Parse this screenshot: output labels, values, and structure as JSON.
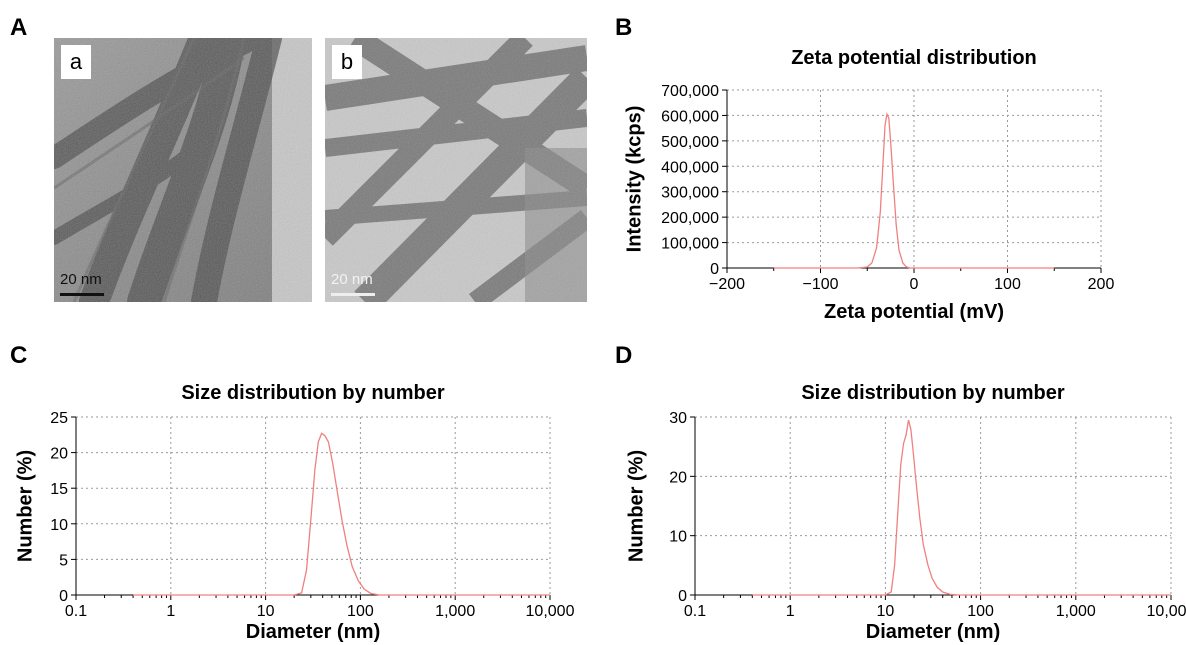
{
  "panel_letters": {
    "A": "A",
    "B": "B",
    "C": "C",
    "D": "D"
  },
  "tem_images": [
    {
      "label": "a",
      "scale_bar": "20 nm"
    },
    {
      "label": "b",
      "scale_bar": "20 nm"
    }
  ],
  "chart_data": [
    {
      "id": "B",
      "type": "line",
      "title": "Zeta potential distribution",
      "xlabel": "Zeta potential (mV)",
      "ylabel": "Intensity (kcps)",
      "xscale": "linear",
      "xlim": [
        -200,
        200
      ],
      "ylim": [
        0,
        700000
      ],
      "xticks": [
        -200,
        -100,
        0,
        100,
        200
      ],
      "xtick_labels": [
        "−200",
        "−100",
        "0",
        "100",
        "200"
      ],
      "yticks": [
        0,
        100000,
        200000,
        300000,
        400000,
        500000,
        600000,
        700000
      ],
      "ytick_labels": [
        "0",
        "100,000",
        "200,000",
        "300,000",
        "400,000",
        "500,000",
        "600,000",
        "700,000"
      ],
      "grid": true,
      "line_color": "#f08080",
      "series": [
        {
          "x": [
            -150,
            -60,
            -50,
            -45,
            -40,
            -36,
            -33,
            -31,
            -29,
            -27,
            -25,
            -22,
            -19,
            -16,
            -12,
            -8,
            -4,
            150
          ],
          "y": [
            0,
            0,
            4000,
            20000,
            80000,
            220000,
            420000,
            560000,
            605000,
            590000,
            500000,
            330000,
            170000,
            70000,
            20000,
            4000,
            0,
            0
          ]
        }
      ]
    },
    {
      "id": "C",
      "type": "line",
      "title": "Size distribution by number",
      "xlabel": "Diameter (nm)",
      "ylabel": "Number (%)",
      "xscale": "log",
      "xlim": [
        0.1,
        10000
      ],
      "ylim": [
        0,
        25
      ],
      "xticks": [
        0.1,
        1,
        10,
        100,
        1000,
        10000
      ],
      "xtick_labels": [
        "0.1",
        "1",
        "10",
        "100",
        "1,000",
        "10,000"
      ],
      "yticks": [
        0,
        5,
        10,
        15,
        20,
        25
      ],
      "ytick_labels": [
        "0",
        "5",
        "10",
        "15",
        "20",
        "25"
      ],
      "grid": true,
      "line_color": "#f08080",
      "series": [
        {
          "x": [
            0.4,
            20,
            24,
            27,
            30,
            33,
            36,
            39,
            42,
            46,
            51,
            57,
            64,
            72,
            82,
            95,
            110,
            130,
            160,
            10000
          ],
          "y": [
            0,
            0,
            0.3,
            3.5,
            10.5,
            17.5,
            21.5,
            22.7,
            22.4,
            21.5,
            18.5,
            14.5,
            10.5,
            7,
            4,
            2,
            0.8,
            0.2,
            0,
            0
          ]
        }
      ]
    },
    {
      "id": "D",
      "type": "line",
      "title": "Size distribution by number",
      "xlabel": "Diameter (nm)",
      "ylabel": "Number (%)",
      "xscale": "log",
      "xlim": [
        0.1,
        10000
      ],
      "ylim": [
        0,
        30
      ],
      "xticks": [
        0.1,
        1,
        10,
        100,
        1000,
        10000
      ],
      "xtick_labels": [
        "0.1",
        "1",
        "10",
        "100",
        "1,000",
        "10,000"
      ],
      "yticks": [
        0,
        10,
        20,
        30
      ],
      "ytick_labels": [
        "0",
        "10",
        "20",
        "30"
      ],
      "grid": true,
      "line_color": "#f08080",
      "series": [
        {
          "x": [
            0.4,
            10,
            11.5,
            12.5,
            13.5,
            14.5,
            15.5,
            16.5,
            17.5,
            18.5,
            19.5,
            21,
            23,
            25,
            28,
            31,
            35,
            40,
            48,
            60,
            10000
          ],
          "y": [
            0,
            0,
            0.5,
            5,
            14,
            22,
            25.5,
            27,
            29.5,
            28,
            24.5,
            19,
            13,
            8.5,
            5,
            2.8,
            1.3,
            0.5,
            0.1,
            0,
            0
          ]
        }
      ]
    }
  ]
}
